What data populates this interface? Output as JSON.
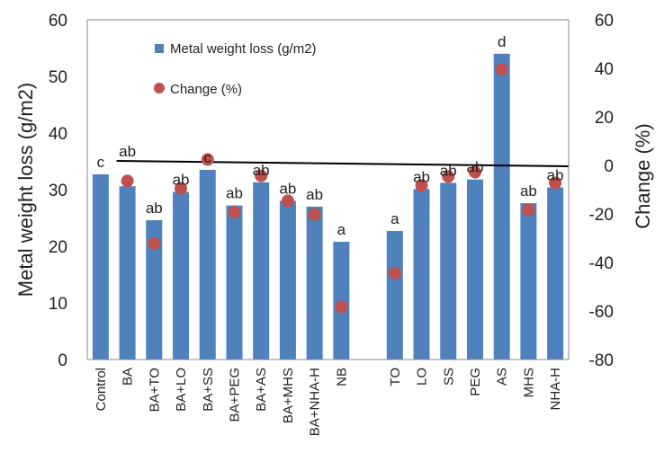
{
  "chart_data": {
    "type": "bar",
    "categories": [
      "Control",
      "BA",
      "BA+TO",
      "BA+LO",
      "BA+SS",
      "BA+PEG",
      "BA+AS",
      "BA+MHS",
      "BA+NHA-H",
      "NB",
      "",
      "TO",
      "LO",
      "SS",
      "PEG",
      "AS",
      "MHS",
      "NHA-H"
    ],
    "series": [
      {
        "name": "Metal weight loss (g/m2)",
        "type": "bar",
        "axis": "left",
        "color": "#4f81bd",
        "values": [
          32.7,
          30.6,
          24.6,
          29.6,
          33.5,
          27.2,
          31.3,
          28.0,
          27.0,
          20.8,
          null,
          22.7,
          30.1,
          31.2,
          31.8,
          54.0,
          27.6,
          30.4
        ]
      },
      {
        "name": "Change (%)",
        "type": "scatter",
        "axis": "right",
        "color": "#c0504d",
        "values": [
          null,
          -6.4,
          -32.2,
          -9.5,
          2.4,
          -19.3,
          -4.3,
          -14.6,
          -20.2,
          -58.3,
          null,
          -44.4,
          -8.3,
          -4.6,
          -2.8,
          39.6,
          -18.3,
          -7.2
        ]
      }
    ],
    "significance_labels": [
      "c",
      "ab",
      "ab",
      "ab",
      "c",
      "ab",
      "ab",
      "ab",
      "ab",
      "a",
      "",
      "a",
      "ab",
      "ab",
      "ab",
      "d",
      "ab",
      "ab"
    ],
    "ylabel": "Metal weight loss (g/m2)",
    "y2label": "Change (%)",
    "ylim": [
      0,
      60
    ],
    "y2lim": [
      -80,
      60
    ],
    "yticks": [
      "0",
      "10",
      "20",
      "30",
      "40",
      "50",
      "60"
    ],
    "y2ticks": [
      "-80",
      "-60",
      "-40",
      "-20",
      "0",
      "20",
      "40",
      "60"
    ],
    "reference_line": {
      "axis": "right",
      "value": 0
    },
    "legend_position": "top-left",
    "grid": false
  }
}
